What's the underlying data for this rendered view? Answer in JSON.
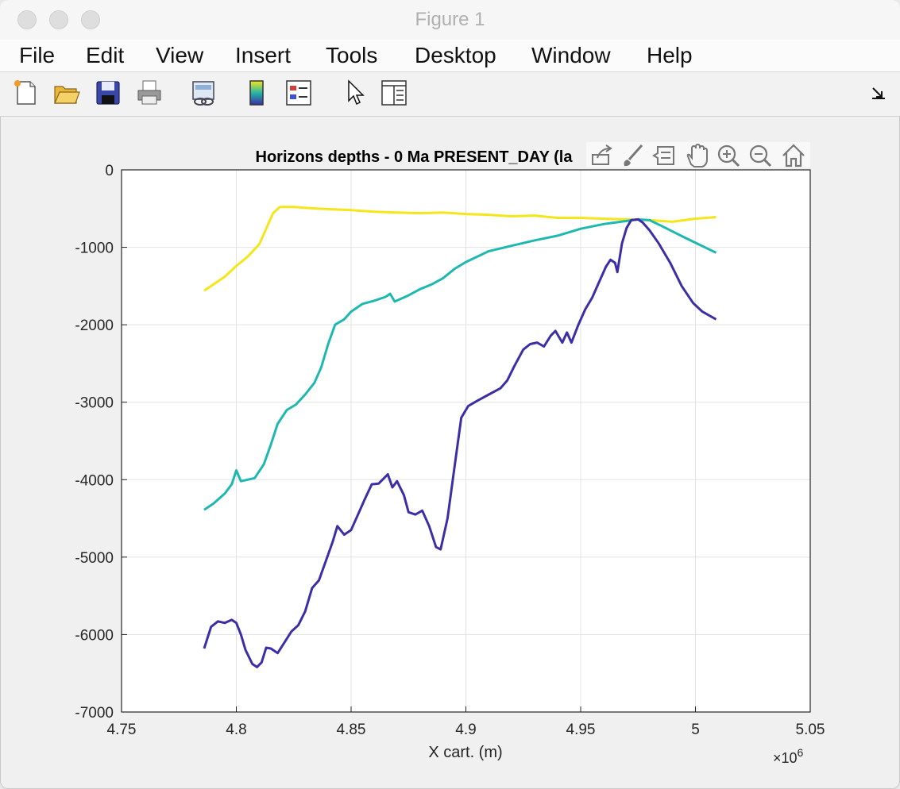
{
  "window": {
    "title": "Figure 1"
  },
  "menubar": {
    "items": [
      "File",
      "Edit",
      "View",
      "Insert",
      "Tools",
      "Desktop",
      "Window",
      "Help"
    ]
  },
  "toolbar": {
    "icons": [
      "new-figure-icon",
      "open-folder-icon",
      "save-icon",
      "print-icon",
      "link-plot-icon",
      "colorbar-icon",
      "legend-icon",
      "pointer-icon",
      "property-editor-icon",
      "dock-arrow-icon"
    ]
  },
  "axes_toolbar": {
    "icons": [
      "export-icon",
      "brush-icon",
      "data-tip-icon",
      "pan-hand-icon",
      "zoom-in-icon",
      "zoom-out-icon",
      "home-icon"
    ]
  },
  "chart_data": {
    "type": "line",
    "title": "Horizons depths - 0 Ma   PRESENT_DAY       (la",
    "xlabel": "X cart. (m)",
    "ylabel": "",
    "x_exponent_label": "×10",
    "x_exponent_power": "6",
    "xlim": [
      4.75,
      5.05
    ],
    "ylim": [
      -7000,
      0
    ],
    "xticks": [
      4.75,
      4.8,
      4.85,
      4.9,
      4.95,
      5,
      5.05
    ],
    "xtick_labels": [
      "4.75",
      "4.8",
      "4.85",
      "4.9",
      "4.95",
      "5",
      "5.05"
    ],
    "yticks": [
      0,
      -1000,
      -2000,
      -3000,
      -4000,
      -5000,
      -6000,
      -7000
    ],
    "ytick_labels": [
      "0",
      "-1000",
      "-2000",
      "-3000",
      "-4000",
      "-5000",
      "-6000",
      "-7000"
    ],
    "grid": true,
    "series": [
      {
        "color": "#f5e61b",
        "points": [
          [
            4.786,
            -1560
          ],
          [
            4.79,
            -1480
          ],
          [
            4.795,
            -1380
          ],
          [
            4.8,
            -1240
          ],
          [
            4.805,
            -1120
          ],
          [
            4.81,
            -960
          ],
          [
            4.813,
            -760
          ],
          [
            4.816,
            -560
          ],
          [
            4.819,
            -480
          ],
          [
            4.825,
            -480
          ],
          [
            4.835,
            -500
          ],
          [
            4.85,
            -520
          ],
          [
            4.86,
            -540
          ],
          [
            4.87,
            -550
          ],
          [
            4.88,
            -560
          ],
          [
            4.89,
            -550
          ],
          [
            4.9,
            -570
          ],
          [
            4.91,
            -580
          ],
          [
            4.92,
            -600
          ],
          [
            4.93,
            -590
          ],
          [
            4.94,
            -620
          ],
          [
            4.95,
            -620
          ],
          [
            4.96,
            -630
          ],
          [
            4.97,
            -640
          ],
          [
            4.975,
            -645
          ],
          [
            4.98,
            -650
          ],
          [
            4.985,
            -660
          ],
          [
            4.99,
            -670
          ],
          [
            4.995,
            -650
          ],
          [
            5.0,
            -630
          ],
          [
            5.009,
            -610
          ]
        ]
      },
      {
        "color": "#1fb8b0",
        "points": [
          [
            4.786,
            -4390
          ],
          [
            4.79,
            -4310
          ],
          [
            4.795,
            -4180
          ],
          [
            4.798,
            -4060
          ],
          [
            4.8,
            -3880
          ],
          [
            4.802,
            -4020
          ],
          [
            4.805,
            -4000
          ],
          [
            4.808,
            -3980
          ],
          [
            4.812,
            -3800
          ],
          [
            4.815,
            -3550
          ],
          [
            4.818,
            -3280
          ],
          [
            4.822,
            -3100
          ],
          [
            4.826,
            -3030
          ],
          [
            4.83,
            -2900
          ],
          [
            4.834,
            -2750
          ],
          [
            4.837,
            -2550
          ],
          [
            4.84,
            -2250
          ],
          [
            4.843,
            -2000
          ],
          [
            4.847,
            -1930
          ],
          [
            4.85,
            -1830
          ],
          [
            4.855,
            -1730
          ],
          [
            4.86,
            -1690
          ],
          [
            4.865,
            -1640
          ],
          [
            4.867,
            -1600
          ],
          [
            4.869,
            -1700
          ],
          [
            4.875,
            -1620
          ],
          [
            4.88,
            -1540
          ],
          [
            4.885,
            -1480
          ],
          [
            4.89,
            -1400
          ],
          [
            4.895,
            -1280
          ],
          [
            4.9,
            -1190
          ],
          [
            4.91,
            -1050
          ],
          [
            4.92,
            -980
          ],
          [
            4.93,
            -910
          ],
          [
            4.94,
            -850
          ],
          [
            4.95,
            -760
          ],
          [
            4.96,
            -700
          ],
          [
            4.97,
            -660
          ],
          [
            4.975,
            -640
          ],
          [
            4.98,
            -650
          ],
          [
            4.985,
            -720
          ],
          [
            4.995,
            -870
          ],
          [
            5.009,
            -1070
          ]
        ]
      },
      {
        "color": "#3b2ea6",
        "points": [
          [
            4.786,
            -6180
          ],
          [
            4.789,
            -5900
          ],
          [
            4.792,
            -5830
          ],
          [
            4.795,
            -5850
          ],
          [
            4.798,
            -5810
          ],
          [
            4.8,
            -5850
          ],
          [
            4.802,
            -6000
          ],
          [
            4.804,
            -6200
          ],
          [
            4.807,
            -6380
          ],
          [
            4.809,
            -6420
          ],
          [
            4.811,
            -6360
          ],
          [
            4.813,
            -6170
          ],
          [
            4.815,
            -6180
          ],
          [
            4.818,
            -6240
          ],
          [
            4.821,
            -6100
          ],
          [
            4.824,
            -5960
          ],
          [
            4.827,
            -5880
          ],
          [
            4.83,
            -5700
          ],
          [
            4.833,
            -5400
          ],
          [
            4.836,
            -5300
          ],
          [
            4.839,
            -5050
          ],
          [
            4.842,
            -4800
          ],
          [
            4.844,
            -4600
          ],
          [
            4.847,
            -4710
          ],
          [
            4.85,
            -4650
          ],
          [
            4.853,
            -4450
          ],
          [
            4.856,
            -4250
          ],
          [
            4.859,
            -4060
          ],
          [
            4.862,
            -4050
          ],
          [
            4.865,
            -3960
          ],
          [
            4.866,
            -3930
          ],
          [
            4.868,
            -4100
          ],
          [
            4.87,
            -4020
          ],
          [
            4.873,
            -4200
          ],
          [
            4.875,
            -4420
          ],
          [
            4.878,
            -4450
          ],
          [
            4.881,
            -4400
          ],
          [
            4.884,
            -4600
          ],
          [
            4.887,
            -4870
          ],
          [
            4.889,
            -4900
          ],
          [
            4.892,
            -4500
          ],
          [
            4.895,
            -3850
          ],
          [
            4.898,
            -3200
          ],
          [
            4.901,
            -3050
          ],
          [
            4.905,
            -2980
          ],
          [
            4.91,
            -2900
          ],
          [
            4.915,
            -2820
          ],
          [
            4.918,
            -2720
          ],
          [
            4.921,
            -2540
          ],
          [
            4.925,
            -2320
          ],
          [
            4.928,
            -2250
          ],
          [
            4.931,
            -2230
          ],
          [
            4.934,
            -2280
          ],
          [
            4.937,
            -2140
          ],
          [
            4.939,
            -2080
          ],
          [
            4.942,
            -2230
          ],
          [
            4.944,
            -2100
          ],
          [
            4.946,
            -2230
          ],
          [
            4.949,
            -2000
          ],
          [
            4.952,
            -1800
          ],
          [
            4.955,
            -1650
          ],
          [
            4.958,
            -1450
          ],
          [
            4.961,
            -1250
          ],
          [
            4.963,
            -1160
          ],
          [
            4.965,
            -1200
          ],
          [
            4.966,
            -1320
          ],
          [
            4.968,
            -950
          ],
          [
            4.97,
            -750
          ],
          [
            4.972,
            -650
          ],
          [
            4.975,
            -640
          ],
          [
            4.977,
            -680
          ],
          [
            4.98,
            -780
          ],
          [
            4.984,
            -950
          ],
          [
            4.989,
            -1200
          ],
          [
            4.994,
            -1500
          ],
          [
            4.999,
            -1720
          ],
          [
            5.003,
            -1830
          ],
          [
            5.009,
            -1930
          ]
        ]
      }
    ]
  }
}
